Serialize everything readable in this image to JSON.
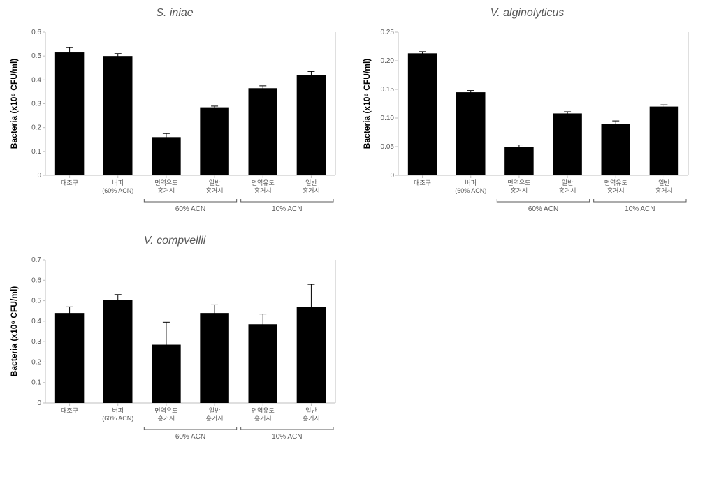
{
  "charts": [
    {
      "title": "S. iniae",
      "type": "bar",
      "ylabel": "Bacteria (x10⁶ CFU/ml)",
      "ylim": [
        0,
        0.6
      ],
      "ytick_step": 0.1,
      "background_color": "#ffffff",
      "axis_color": "#bfbfbf",
      "bar_color": "#000000",
      "bar_width": 0.6,
      "label_fontsize": 12,
      "tick_fontsize": 10,
      "categories": [
        "대조구",
        "버퍼\n(60% ACN)",
        "면역유도\n홍거시",
        "일반\n홍거시",
        "면역유도\n홍거시",
        "일반\n홍거시"
      ],
      "values": [
        0.515,
        0.5,
        0.16,
        0.285,
        0.365,
        0.42
      ],
      "errors": [
        0.02,
        0.01,
        0.015,
        0.005,
        0.01,
        0.015
      ],
      "groups": [
        {
          "label": "60% ACN",
          "start": 2,
          "end": 3
        },
        {
          "label": "10% ACN",
          "start": 4,
          "end": 5
        }
      ]
    },
    {
      "title": "V. alginolyticus",
      "type": "bar",
      "ylabel": "Bacteria (x10⁶ CFU/ml)",
      "ylim": [
        0,
        0.25
      ],
      "ytick_step": 0.05,
      "background_color": "#ffffff",
      "axis_color": "#bfbfbf",
      "bar_color": "#000000",
      "bar_width": 0.6,
      "label_fontsize": 12,
      "tick_fontsize": 10,
      "categories": [
        "대조구",
        "버퍼\n(60% ACN)",
        "면역유도\n홍거시",
        "일반\n홍거시",
        "면역유도\n홍거시",
        "일반\n홍거시"
      ],
      "values": [
        0.213,
        0.145,
        0.05,
        0.108,
        0.09,
        0.12
      ],
      "errors": [
        0.003,
        0.003,
        0.003,
        0.003,
        0.005,
        0.003
      ],
      "groups": [
        {
          "label": "60% ACN",
          "start": 2,
          "end": 3
        },
        {
          "label": "10% ACN",
          "start": 4,
          "end": 5
        }
      ]
    },
    {
      "title": "V. compvellii",
      "type": "bar",
      "ylabel": "Bacteria (x10⁶ CFU/ml)",
      "ylim": [
        0,
        0.7
      ],
      "ytick_step": 0.1,
      "background_color": "#ffffff",
      "axis_color": "#bfbfbf",
      "bar_color": "#000000",
      "bar_width": 0.6,
      "label_fontsize": 12,
      "tick_fontsize": 10,
      "categories": [
        "대조구",
        "버퍼\n(60% ACN)",
        "면역유도\n홍거시",
        "일반\n홍거시",
        "면역유도\n홍거시",
        "일반\n홍거시"
      ],
      "values": [
        0.44,
        0.505,
        0.285,
        0.44,
        0.385,
        0.47
      ],
      "errors": [
        0.03,
        0.025,
        0.11,
        0.04,
        0.05,
        0.11
      ],
      "groups": [
        {
          "label": "60% ACN",
          "start": 2,
          "end": 3
        },
        {
          "label": "10% ACN",
          "start": 4,
          "end": 5
        }
      ]
    }
  ]
}
